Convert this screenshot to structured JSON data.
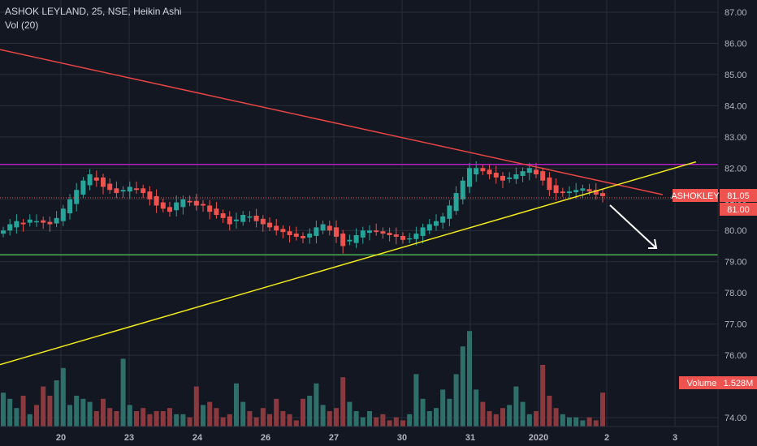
{
  "header": {
    "title": "ASHOK LEYLAND, 25, NSE, Heikin Ashi",
    "volume_indicator": "Vol (20)"
  },
  "colors": {
    "background": "#131722",
    "grid": "#2a2e39",
    "up": "#26a69a",
    "down": "#ef5350",
    "up_volume": "#2e6f6a",
    "down_volume": "#8a3a3e",
    "trend_red": "#e84545",
    "trend_yellow": "#f2ea1a",
    "level_purple": "#b41fc6",
    "level_green": "#4caf50",
    "arrow": "#ffffff",
    "badge": "#ef5350"
  },
  "badges": {
    "symbol": "ASHOKLEY",
    "price": "81.05",
    "level": "81.00",
    "volume_label": "Volume",
    "volume_value": "1.528M"
  },
  "chart_data": {
    "type": "candlestick",
    "title": "ASHOK LEYLAND, 25, NSE, Heikin Ashi",
    "x_ticks": [
      "20",
      "23",
      "24",
      "26",
      "27",
      "30",
      "31",
      "2020",
      "2",
      "3"
    ],
    "y_ticks": [
      "87.00",
      "86.00",
      "85.00",
      "84.00",
      "83.00",
      "82.00",
      "81.00",
      "80.00",
      "79.00",
      "78.00",
      "77.00",
      "76.00",
      "74.00"
    ],
    "ylim": [
      73.65,
      87.3
    ],
    "grid": true,
    "last_price": 81.05,
    "horizontal_levels": [
      {
        "color": "purple",
        "value": 82.12
      },
      {
        "color": "green",
        "value": 79.22
      }
    ],
    "trendlines": [
      {
        "color": "red",
        "from": {
          "x_slot": 0,
          "y": 85.8
        },
        "to": {
          "x_slot": 99,
          "y": 81.15
        }
      },
      {
        "color": "yellow",
        "from": {
          "x_slot": 0,
          "y": 75.7
        },
        "to": {
          "x_slot": 104,
          "y": 82.2
        }
      }
    ],
    "candles_close": [
      80.0,
      80.2,
      80.3,
      80.2,
      80.35,
      80.3,
      80.25,
      80.2,
      80.4,
      80.7,
      81.0,
      81.3,
      81.6,
      81.8,
      81.6,
      81.4,
      81.3,
      81.2,
      81.3,
      81.4,
      81.3,
      81.2,
      81.0,
      80.8,
      80.7,
      80.6,
      80.9,
      81.0,
      80.9,
      80.8,
      80.8,
      80.6,
      80.5,
      80.4,
      80.2,
      80.35,
      80.5,
      80.45,
      80.3,
      80.2,
      80.1,
      80.0,
      79.95,
      79.85,
      79.8,
      79.75,
      79.9,
      80.1,
      80.2,
      80.0,
      79.8,
      79.5,
      79.7,
      79.85,
      80.0,
      80.0,
      79.95,
      79.9,
      79.85,
      79.8,
      79.7,
      79.75,
      79.9,
      80.1,
      80.2,
      80.3,
      80.45,
      80.8,
      81.2,
      81.6,
      82.0,
      82.0,
      81.9,
      81.8,
      81.7,
      81.6,
      81.7,
      81.8,
      81.9,
      82.0,
      81.8,
      81.6,
      81.3,
      81.2,
      81.2,
      81.25,
      81.3,
      81.35,
      81.25,
      81.15,
      81.1
    ],
    "volume": [
      1.1,
      0.9,
      0.6,
      1.0,
      0.4,
      0.7,
      1.3,
      1.0,
      1.5,
      1.9,
      0.7,
      1.0,
      0.9,
      0.8,
      0.5,
      0.9,
      0.6,
      0.5,
      2.2,
      0.7,
      0.5,
      0.6,
      0.4,
      0.5,
      0.5,
      0.6,
      0.4,
      0.4,
      0.3,
      1.3,
      0.7,
      0.8,
      0.6,
      0.3,
      0.4,
      1.4,
      0.8,
      0.5,
      0.3,
      0.6,
      0.4,
      0.9,
      0.5,
      0.4,
      0.2,
      0.9,
      1.0,
      1.4,
      0.7,
      0.5,
      0.6,
      1.6,
      0.8,
      0.5,
      0.3,
      0.5,
      0.3,
      0.4,
      0.2,
      0.3,
      0.2,
      0.4,
      1.7,
      0.9,
      0.5,
      0.6,
      1.2,
      0.9,
      1.7,
      2.6,
      3.1,
      1.2,
      0.8,
      0.5,
      0.4,
      0.6,
      0.7,
      1.3,
      0.8,
      0.4,
      0.5,
      2.0,
      1.0,
      0.6,
      0.4,
      0.3,
      0.3,
      0.2,
      0.3,
      0.2,
      1.1
    ]
  }
}
